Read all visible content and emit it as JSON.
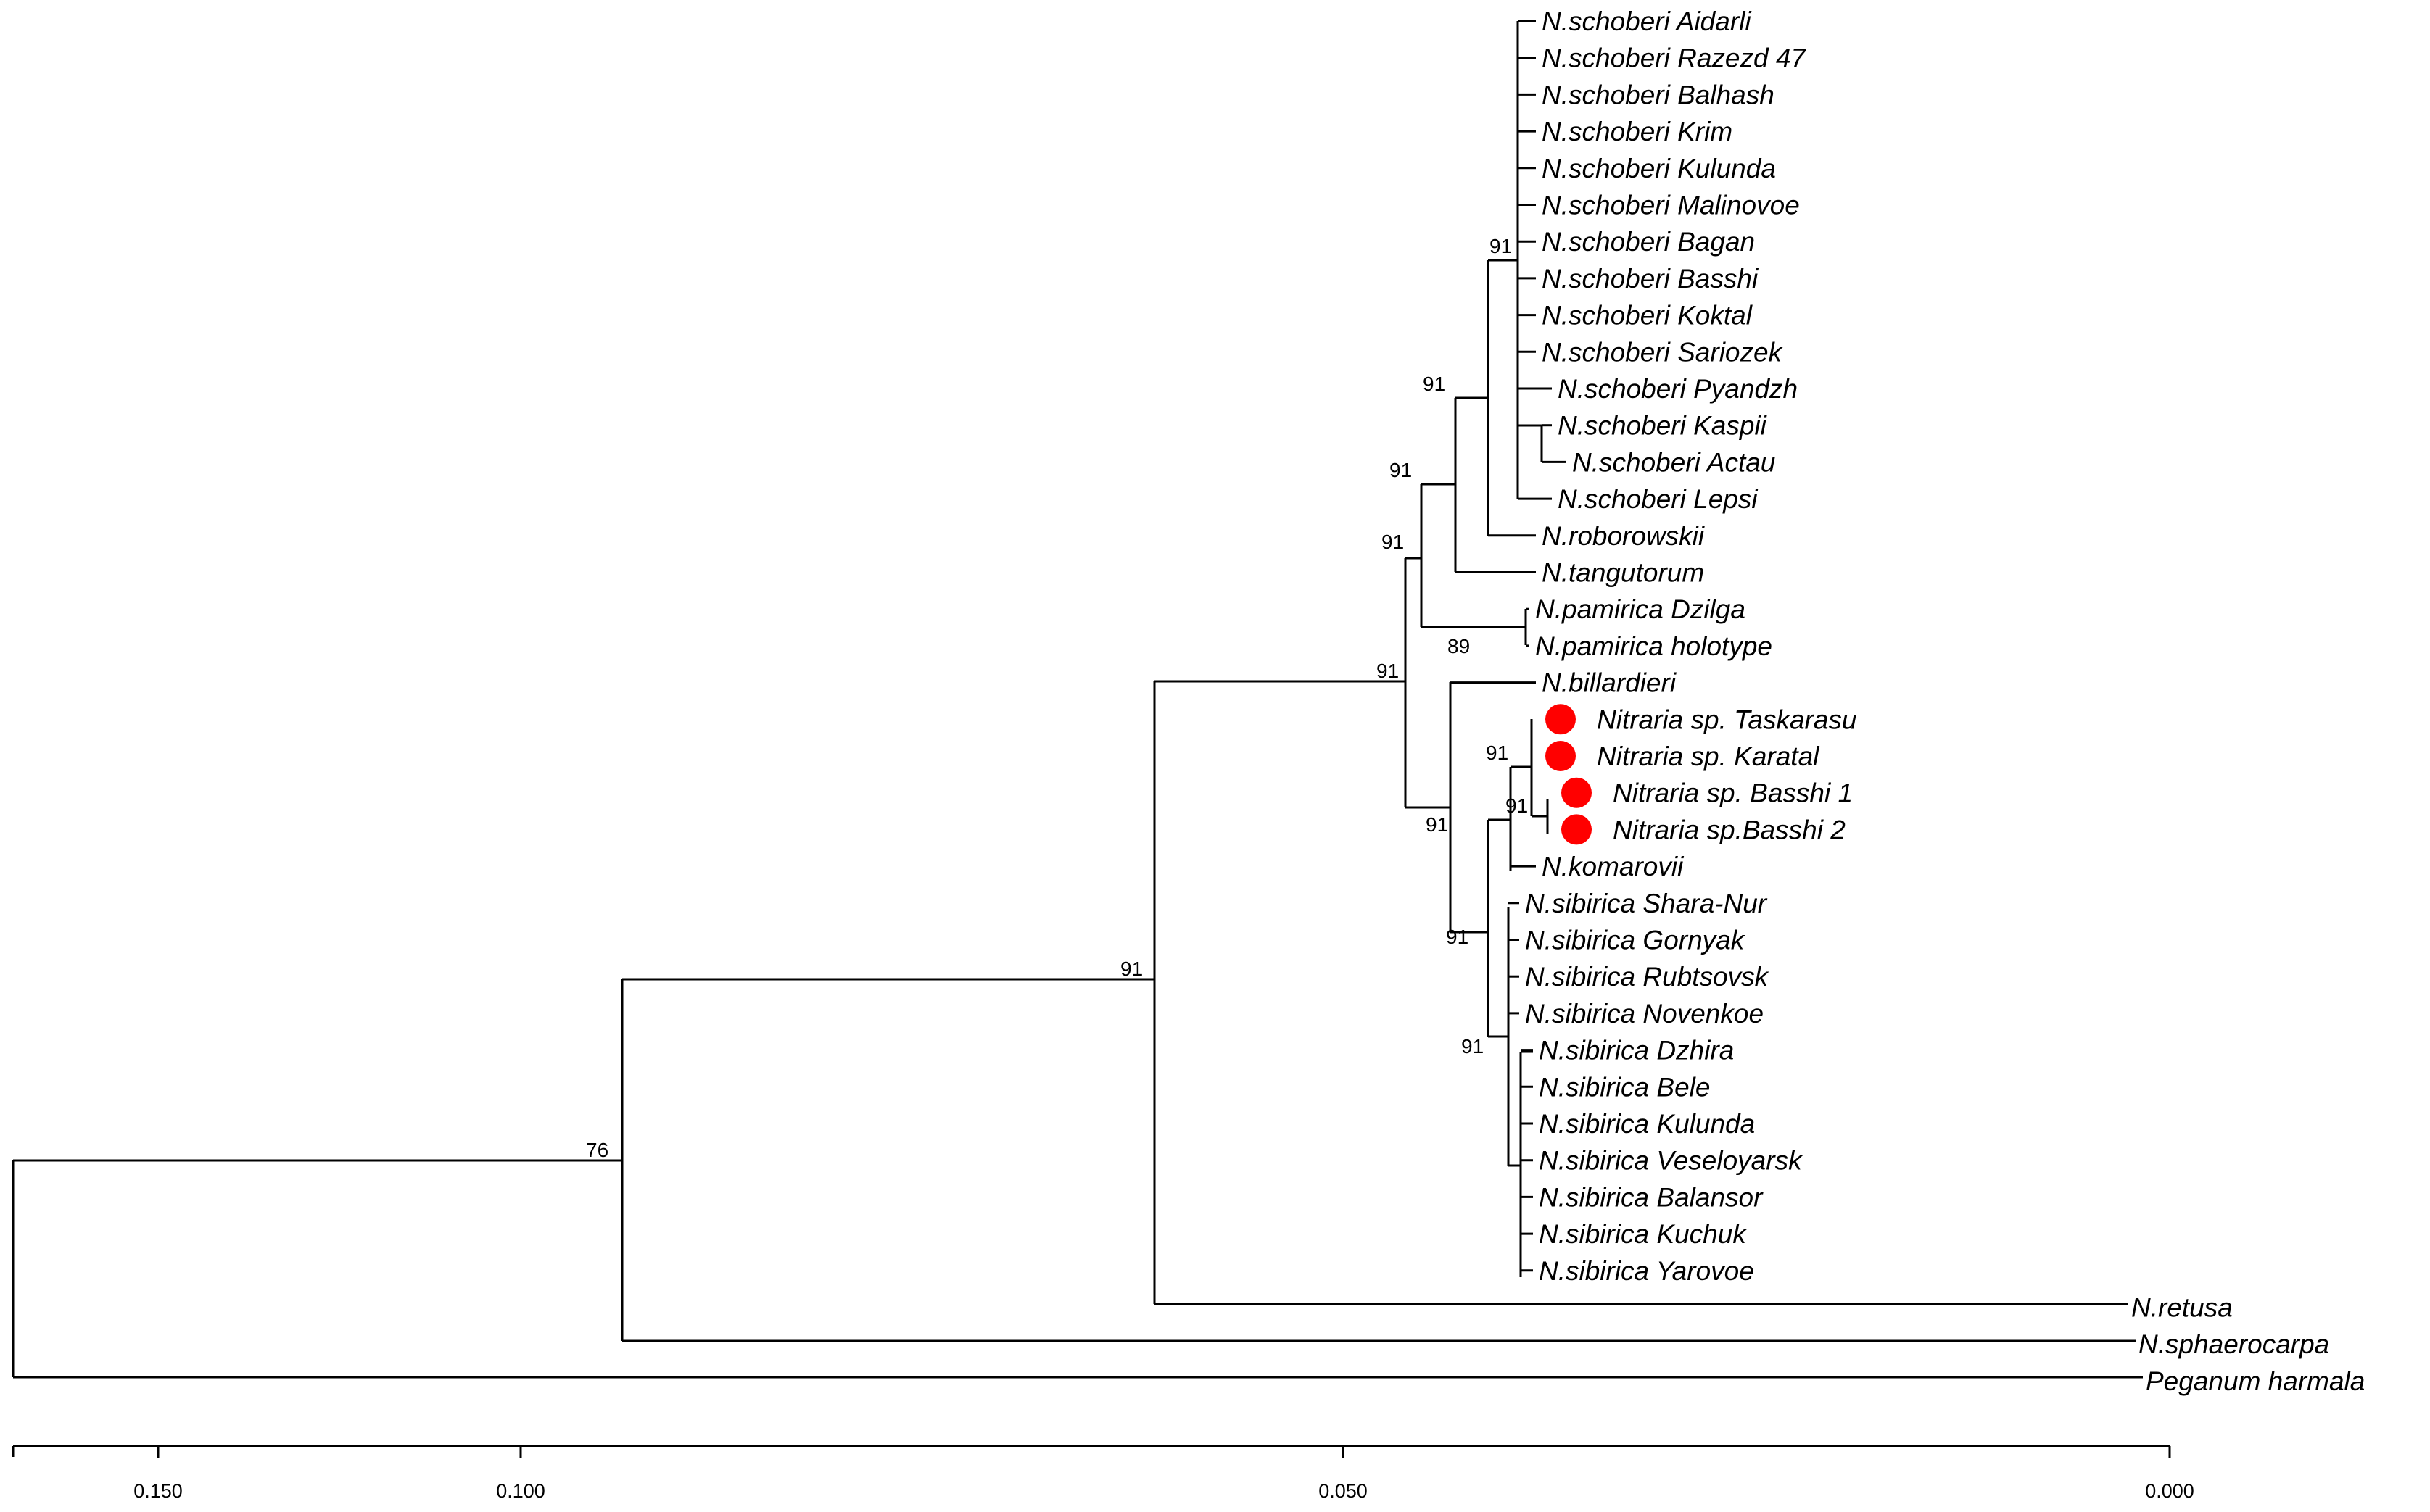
{
  "figure": {
    "type": "phylogenetic-tree",
    "highlight_color": "#ff0000",
    "line_color": "#000000"
  },
  "taxa": [
    {
      "name": "N.schoberi Aidarli"
    },
    {
      "name": "N.schoberi Razezd 47"
    },
    {
      "name": "N.schoberi Balhash"
    },
    {
      "name": "N.schoberi Krim"
    },
    {
      "name": "N.schoberi Kulunda"
    },
    {
      "name": "N.schoberi Malinovoe"
    },
    {
      "name": "N.schoberi Bagan"
    },
    {
      "name": "N.schoberi Basshi"
    },
    {
      "name": "N.schoberi Koktal"
    },
    {
      "name": "N.schoberi Sariozek"
    },
    {
      "name": "N.schoberi Pyandzh"
    },
    {
      "name": "N.schoberi Kaspii"
    },
    {
      "name": "N.schoberi Actau"
    },
    {
      "name": "N.schoberi Lepsi"
    },
    {
      "name": "N.roborowskii"
    },
    {
      "name": "N.tangutorum"
    },
    {
      "name": "N.pamirica Dzilga"
    },
    {
      "name": "N.pamirica holotype"
    },
    {
      "name": "N.billardieri"
    },
    {
      "name": "Nitraria sp. Taskarasu",
      "highlight": true
    },
    {
      "name": "Nitraria sp. Karatal",
      "highlight": true
    },
    {
      "name": "Nitraria sp. Basshi 1",
      "highlight": true
    },
    {
      "name": "Nitraria sp.Basshi 2",
      "highlight": true
    },
    {
      "name": "N.komarovii"
    },
    {
      "name": "N.sibirica Shara-Nur"
    },
    {
      "name": "N.sibirica Gornyak"
    },
    {
      "name": "N.sibirica Rubtsovsk"
    },
    {
      "name": "N.sibirica Novenkoe"
    },
    {
      "name": "N.sibirica Dzhira"
    },
    {
      "name": "N.sibirica Bele"
    },
    {
      "name": "N.sibirica Kulunda"
    },
    {
      "name": "N.sibirica Veseloyarsk"
    },
    {
      "name": "N.sibirica Balansor"
    },
    {
      "name": "N.sibirica Kuchuk"
    },
    {
      "name": "N.sibirica Yarovoe"
    },
    {
      "name": "N.retusa"
    },
    {
      "name": "N.sphaerocarpa"
    },
    {
      "name": "Peganum harmala"
    }
  ],
  "bootstrap": [
    {
      "clade": "root-ingroup",
      "value": "76"
    },
    {
      "clade": "nitraria-core",
      "value": "91"
    },
    {
      "clade": "core-split",
      "value": "91"
    },
    {
      "clade": "schoberi-group",
      "value": "91"
    },
    {
      "clade": "schoberi-pamirica",
      "value": "91"
    },
    {
      "clade": "schoberi-tangutorum",
      "value": "91"
    },
    {
      "clade": "schoberi-roborowskii",
      "value": "91"
    },
    {
      "clade": "pamirica",
      "value": "89"
    },
    {
      "clade": "billardieri-sibirica",
      "value": "91"
    },
    {
      "clade": "nitraria-sp-komarovii",
      "value": "91"
    },
    {
      "clade": "nitraria-sp",
      "value": "91"
    },
    {
      "clade": "sibirica",
      "value": "91"
    },
    {
      "clade": "sibirica-subclade",
      "value": "91"
    }
  ],
  "scale_axis": {
    "ticks": [
      "0.150",
      "0.100",
      "0.050",
      "0.000"
    ]
  }
}
